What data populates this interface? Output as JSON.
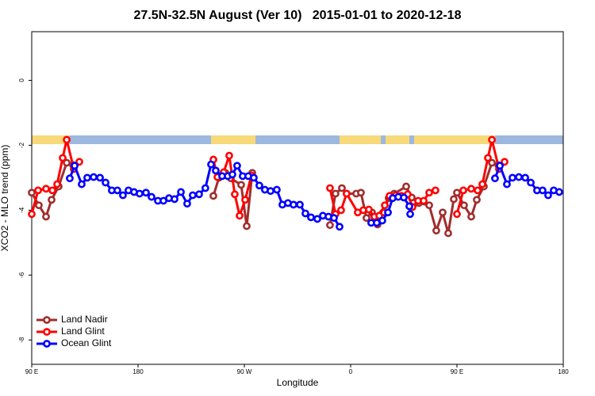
{
  "chart_data": {
    "type": "line",
    "title": "27.5N-32.5N August (Ver 10)   2015-01-01 to 2020-12-18",
    "xlabel": "Longitude",
    "ylabel": "XCO2 - MLO trend (ppm)",
    "xlim": [
      90,
      540
    ],
    "ylim": [
      -8.75,
      1.5
    ],
    "xticks": [
      {
        "value": 90,
        "label": "90 E"
      },
      {
        "value": 180,
        "label": "180"
      },
      {
        "value": 270,
        "label": "90 W"
      },
      {
        "value": 360,
        "label": "0"
      },
      {
        "value": 450,
        "label": "90 E"
      },
      {
        "value": 540,
        "label": "180"
      }
    ],
    "yticks": [
      0,
      -2,
      -4,
      -6,
      -8
    ],
    "legend": "bottom-left",
    "series": [
      {
        "name": "Land Nadir",
        "color": "#a02d2d",
        "x": [
          90.0,
          96.0,
          102.1,
          106.8,
          112.8,
          119.6,
          125.0,
          null,
          243.8,
          248.5,
          253.9,
          258.6,
          267.3,
          272.0,
          276.7,
          null,
          342.5,
          347.2,
          352.6,
          356.6,
          364.7,
          368.7,
          373.4,
          378.1,
          382.8,
          387.5,
          392.2,
          396.9,
          407.0,
          411.7,
          417.7,
          426.5,
          432.5,
          437.9,
          442.6,
          447.3,
          450.0,
          456.0,
          462.1,
          466.8,
          472.8,
          479.6,
          485.0
        ],
        "values": [
          -3.46,
          -3.85,
          -4.2,
          -3.68,
          -3.27,
          -2.54,
          -2.61,
          null,
          -3.56,
          -3.0,
          -2.85,
          -3.02,
          -3.22,
          -4.49,
          -2.85,
          null,
          -4.46,
          -3.49,
          -3.32,
          -3.49,
          -3.49,
          -3.46,
          -4.24,
          -4.07,
          -4.44,
          -4.07,
          -3.63,
          -3.49,
          -3.27,
          -3.61,
          -3.78,
          -3.85,
          -4.63,
          -4.07,
          -4.71,
          -3.66,
          -3.46,
          -3.85,
          -4.2,
          -3.68,
          -3.27,
          -2.54,
          -2.61
        ]
      },
      {
        "name": "Land Glint",
        "color": "#ff0000",
        "x": [
          90.0,
          95.4,
          102.1,
          107.5,
          111.5,
          116.2,
          119.6,
          125.6,
          130.3,
          null,
          243.8,
          247.2,
          252.5,
          257.2,
          261.9,
          266.0,
          270.7,
          276.0,
          null,
          342.5,
          347.2,
          351.9,
          356.6,
          366.0,
          370.7,
          375.4,
          380.1,
          384.2,
          388.9,
          392.9,
          398.3,
          403.0,
          408.3,
          412.4,
          417.1,
          421.8,
          426.5,
          431.8,
          null,
          450.0,
          455.4,
          462.1,
          467.5,
          471.5,
          476.2,
          479.6,
          485.6,
          490.3
        ],
        "values": [
          -4.12,
          -3.39,
          -3.34,
          -3.39,
          -3.2,
          -2.39,
          -1.83,
          -2.73,
          -2.51,
          null,
          -2.44,
          -2.98,
          -2.83,
          -2.32,
          -3.51,
          -4.17,
          -3.68,
          -2.93,
          null,
          -3.32,
          -4.12,
          -4.0,
          -3.49,
          -4.07,
          -4.0,
          -3.98,
          -4.2,
          -4.17,
          -3.85,
          -3.56,
          -3.54,
          -3.56,
          -3.51,
          -3.9,
          -3.71,
          -3.71,
          -3.46,
          -3.39,
          null,
          -4.12,
          -3.39,
          -3.34,
          -3.39,
          -3.2,
          -2.39,
          -1.83,
          -2.73,
          -2.51
        ]
      },
      {
        "name": "Ocean Glint",
        "color": "#0000ff",
        "x": [
          122.2,
          126.3,
          132.3,
          137.0,
          142.4,
          147.8,
          152.5,
          157.8,
          162.5,
          167.2,
          171.9,
          176.6,
          181.3,
          186.7,
          191.4,
          196.8,
          201.5,
          206.2,
          210.9,
          216.3,
          221.6,
          226.3,
          231.7,
          237.0,
          241.8,
          245.8,
          251.2,
          255.9,
          259.9,
          263.9,
          268.6,
          273.3,
          278.0,
          282.7,
          287.4,
          292.2,
          297.5,
          302.2,
          306.9,
          311.6,
          317.0,
          321.7,
          326.4,
          331.8,
          336.5,
          341.2,
          345.9,
          350.6,
          null,
          377.4,
          382.1,
          386.8,
          391.6,
          395.6,
          400.3,
          405.0,
          409.7,
          410.4,
          null,
          482.2,
          486.3,
          492.3,
          497.0,
          502.4,
          507.8,
          512.5,
          517.8,
          522.5,
          527.2,
          531.9,
          536.6
        ],
        "values": [
          -3.02,
          -2.63,
          -3.2,
          -3.0,
          -2.98,
          -3.0,
          -3.15,
          -3.39,
          -3.39,
          -3.54,
          -3.39,
          -3.44,
          -3.49,
          -3.46,
          -3.59,
          -3.71,
          -3.71,
          -3.63,
          -3.66,
          -3.44,
          -3.8,
          -3.54,
          -3.51,
          -3.32,
          -2.59,
          -2.78,
          -2.95,
          -2.95,
          -2.9,
          -2.63,
          -2.95,
          -2.95,
          -3.0,
          -3.24,
          -3.37,
          -3.41,
          -3.37,
          -3.83,
          -3.78,
          -3.83,
          -3.83,
          -4.1,
          -4.22,
          -4.27,
          -4.17,
          -4.2,
          -4.24,
          -4.51,
          null,
          -4.39,
          -4.39,
          -4.32,
          -4.07,
          -3.63,
          -3.59,
          -3.61,
          -3.88,
          -4.12,
          null,
          -3.02,
          -2.63,
          -3.2,
          -3.0,
          -2.98,
          -3.0,
          -3.15,
          -3.39,
          -3.39,
          -3.54,
          -3.39,
          -3.44
        ]
      }
    ]
  }
}
